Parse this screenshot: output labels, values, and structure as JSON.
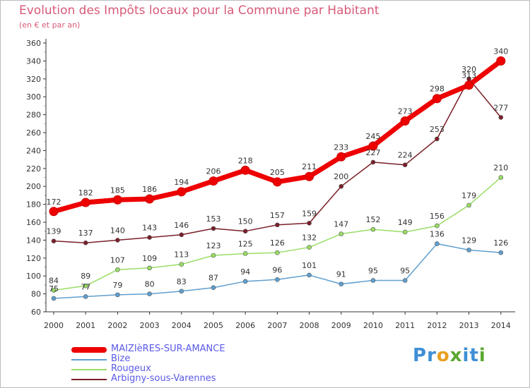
{
  "title": "Evolution des Impôts locaux pour la Commune par Habitant",
  "subtitle": "(en € et par an)",
  "logo": {
    "text": "Proxiti"
  },
  "chart_data": {
    "type": "line",
    "x": [
      "2000",
      "2001",
      "2002",
      "2003",
      "2004",
      "2005",
      "2006",
      "2007",
      "2008",
      "2009",
      "2010",
      "2011",
      "2012",
      "2013",
      "2014"
    ],
    "ylim": [
      60,
      360
    ],
    "yticks": [
      "60",
      "80",
      "100",
      "120",
      "140",
      "160",
      "180",
      "200",
      "220",
      "240",
      "260",
      "280",
      "300",
      "320",
      "340",
      "360"
    ],
    "grid": false,
    "legend_position": "bottom-left",
    "series": [
      {
        "name": "MAIZIèRES-SUR-AMANCE",
        "color": "#ee0000",
        "values": [
          172,
          182,
          185,
          186,
          194,
          206,
          218,
          205,
          211,
          233,
          245,
          273,
          298,
          313,
          340
        ],
        "labels": [
          "172",
          "182",
          "185",
          "186",
          "194",
          "206",
          "218",
          "205",
          "211",
          "233",
          "245",
          "273",
          "298",
          "313",
          "340"
        ]
      },
      {
        "name": "Bize",
        "color": "#5f9fd0",
        "values": [
          75,
          77,
          79,
          80,
          83,
          87,
          94,
          96,
          101,
          91,
          95,
          95,
          136,
          129,
          126
        ],
        "labels": [
          "75",
          "77",
          "79",
          "80",
          "83",
          "87",
          "94",
          "96",
          "101",
          "91",
          "95",
          "95",
          "136",
          "129",
          "126"
        ]
      },
      {
        "name": "Rougeux",
        "color": "#99dd66",
        "values": [
          84,
          89,
          107,
          109,
          113,
          123,
          125,
          126,
          132,
          147,
          152,
          149,
          156,
          179,
          210
        ],
        "labels": [
          "84",
          "89",
          "107",
          "109",
          "113",
          "123",
          "125",
          "126",
          "132",
          "147",
          "152",
          "149",
          "156",
          "179",
          "210"
        ]
      },
      {
        "name": "Arbigny-sous-Varennes",
        "color": "#7a1f28",
        "values": [
          139,
          137,
          140,
          143,
          146,
          153,
          150,
          157,
          159,
          200,
          227,
          224,
          253,
          320,
          277
        ],
        "labels": [
          "139",
          "137",
          "140",
          "143",
          "146",
          "153",
          "150",
          "157",
          "159",
          "200",
          "227",
          "224",
          "253",
          "320",
          "277"
        ]
      }
    ]
  }
}
